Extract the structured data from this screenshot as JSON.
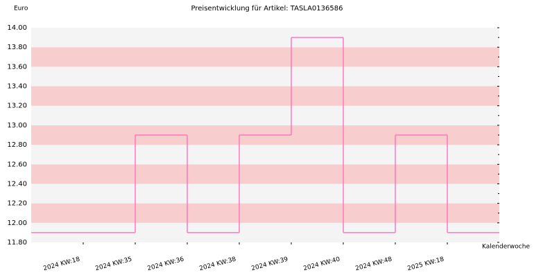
{
  "chart_data": {
    "type": "step",
    "title": "Preisentwicklung für Artikel: TASLA0136586",
    "y_label": "Euro",
    "x_label": "Kalenderwoche",
    "categories": [
      "2024 KW:18",
      "2024 KW:35",
      "2024 KW:36",
      "2024 KW:38",
      "2024 KW:39",
      "2024 KW:40",
      "2024 KW:48",
      "2025 KW:18"
    ],
    "values": [
      11.9,
      12.9,
      11.9,
      12.9,
      13.9,
      11.9,
      12.9,
      11.9
    ],
    "color": "#ff77c0",
    "ylim": [
      11.8,
      14.0
    ],
    "yticks": [
      {
        "value": 11.8,
        "label": "11.80"
      },
      {
        "value": 12.0,
        "label": "12.00"
      },
      {
        "value": 12.2,
        "label": "12.20"
      },
      {
        "value": 12.4,
        "label": "12.40"
      },
      {
        "value": 12.6,
        "label": "12.60"
      },
      {
        "value": 12.8,
        "label": "12.80"
      },
      {
        "value": 13.0,
        "label": "13.00"
      },
      {
        "value": 13.2,
        "label": "13.20"
      },
      {
        "value": 13.4,
        "label": "13.40"
      },
      {
        "value": 13.6,
        "label": "13.60"
      },
      {
        "value": 13.8,
        "label": "13.80"
      },
      {
        "value": 14.0,
        "label": "14.00"
      }
    ],
    "band_colors": [
      "#f4f4f4",
      "#f8cdcd"
    ]
  }
}
